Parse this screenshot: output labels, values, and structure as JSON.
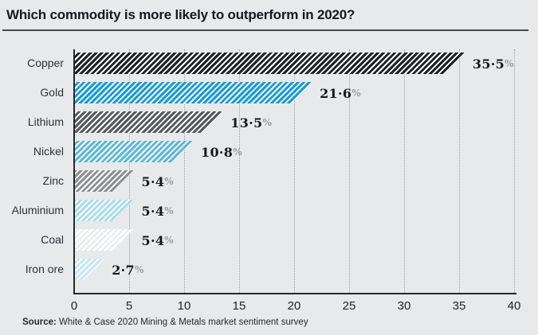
{
  "header": {
    "title": "Which commodity is more likely to outperform in 2020?"
  },
  "source": {
    "label": "Source:",
    "text": " White & Case 2020 Mining & Metals market sentiment survey"
  },
  "colors": {
    "page_background": "#e7e9ea",
    "axis": "#24282c",
    "gridline": "#9ea2a5",
    "value_text": "#15181c",
    "percent_sign": "#9a9ea2",
    "hatch_gap": "#ffffff"
  },
  "chart_data": {
    "type": "bar",
    "orientation": "horizontal",
    "title": "Which commodity is more likely to outperform in 2020?",
    "categories": [
      "Copper",
      "Gold",
      "Lithium",
      "Nickel",
      "Zinc",
      "Aluminium",
      "Coal",
      "Iron ore"
    ],
    "values": [
      35.5,
      21.6,
      13.5,
      10.8,
      5.4,
      5.4,
      5.4,
      2.7
    ],
    "value_labels": [
      "35.5",
      "21.6",
      "13.5",
      "10.8",
      "5.4",
      "5.4",
      "5.4",
      "2.7"
    ],
    "value_suffix": "%",
    "bar_colors": [
      "#1d2024",
      "#169bd7",
      "#54585c",
      "#5cb7dc",
      "#8c8f92",
      "#aadcf0",
      "#ffffff",
      "#c8e7f5"
    ],
    "hatch_gap_colors": [
      "#ffffff",
      "#ffffff",
      "#ffffff",
      "#ffffff",
      "#ffffff",
      "#ffffff",
      "transparent",
      "#ffffff"
    ],
    "hatch_style": "diagonal-forward-slash",
    "xlabel": "",
    "ylabel": "",
    "xlim": [
      0,
      40
    ],
    "x_ticks": [
      0,
      5,
      10,
      15,
      20,
      25,
      30,
      35,
      40
    ],
    "grid": "dotted-vertical",
    "legend": "none"
  }
}
